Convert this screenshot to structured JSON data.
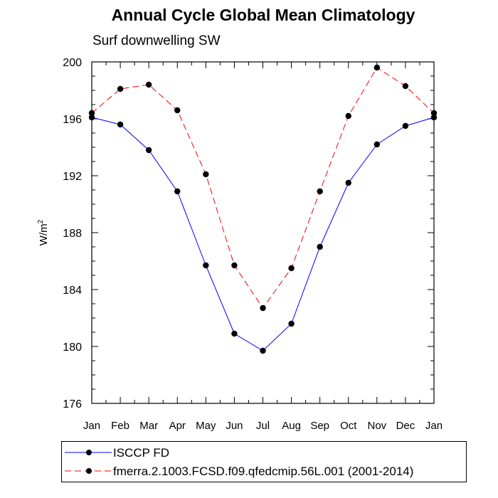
{
  "title": "Annual Cycle Global Mean Climatology",
  "subtitle": "Surf downwelling SW",
  "colors": {
    "isccp": "#0000ff",
    "merra": "#ff0000",
    "axis": "#000000"
  },
  "chart_data": {
    "type": "line",
    "title": "Annual Cycle Global Mean Climatology",
    "subtitle": "Surf downwelling SW",
    "ylabel": "W/m²",
    "ylim": [
      176,
      200
    ],
    "yticks": [
      176,
      180,
      184,
      188,
      192,
      196,
      200
    ],
    "categories": [
      "Jan",
      "Feb",
      "Mar",
      "Apr",
      "May",
      "Jun",
      "Jul",
      "Aug",
      "Sep",
      "Oct",
      "Nov",
      "Dec",
      "Jan"
    ],
    "series": [
      {
        "name": "ISCCP FD",
        "style": "solid",
        "color": "#0000ff",
        "values": [
          196.1,
          195.6,
          193.8,
          190.9,
          185.7,
          180.9,
          179.7,
          181.6,
          187.0,
          191.5,
          194.2,
          195.5,
          196.1
        ]
      },
      {
        "name": "fmerra.2.1003.FCSD.f09.qfedcmip.56L.001 (2001-2014)",
        "style": "dashed",
        "color": "#ff0000",
        "values": [
          196.4,
          198.1,
          198.4,
          196.6,
          192.1,
          185.7,
          182.7,
          185.5,
          190.9,
          196.2,
          199.6,
          198.3,
          196.4
        ]
      }
    ],
    "grid": false,
    "legend": "bottom"
  }
}
